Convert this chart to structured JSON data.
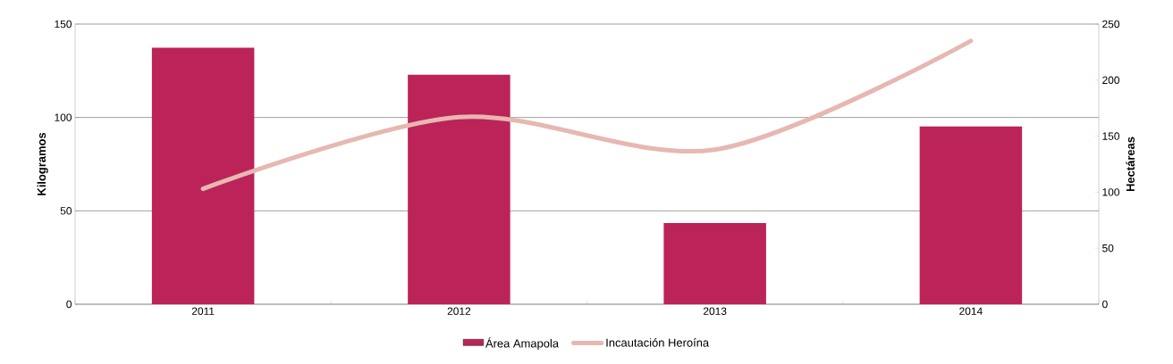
{
  "chart_data": {
    "type": "bar",
    "categories": [
      "2011",
      "2012",
      "2013",
      "2014"
    ],
    "ylabel": "Kilogramos",
    "y2label": "Hectáreas",
    "ylim": [
      0,
      150
    ],
    "yticks": [
      0,
      50,
      100,
      150
    ],
    "y2lim": [
      0,
      250
    ],
    "y2ticks": [
      0,
      50,
      100,
      150,
      200,
      250
    ],
    "grid": "y",
    "legend": "bottom",
    "series": [
      {
        "name": "Área Amapola",
        "color": "#bc2359",
        "values": [
          137.4,
          122.9,
          43.5,
          95.2
        ]
      },
      {
        "name": "Incautación Heroína",
        "type": "line",
        "axis": "y2",
        "color": "#e6b8b1",
        "values": [
          103,
          167,
          138,
          235
        ]
      }
    ]
  }
}
